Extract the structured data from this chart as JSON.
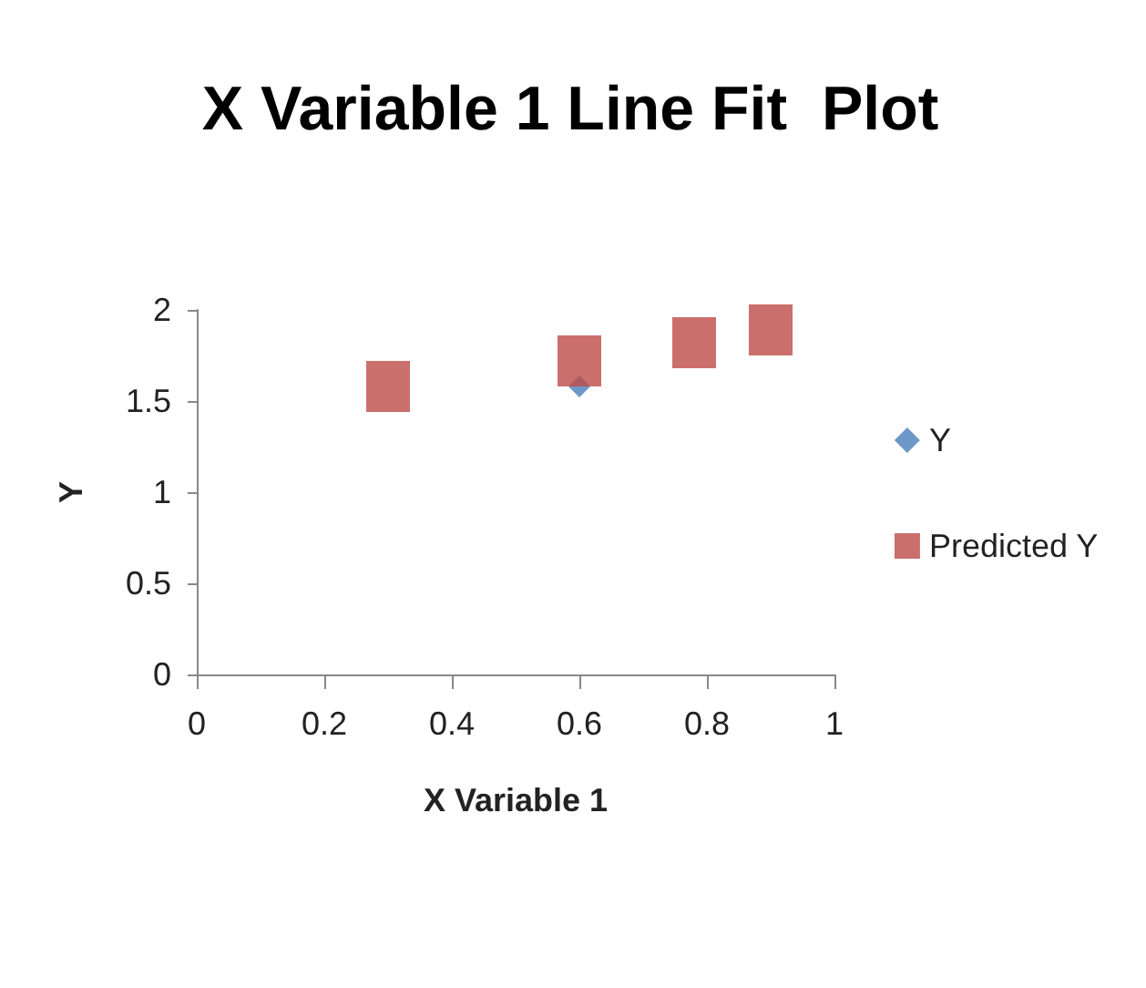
{
  "chart_data": {
    "type": "scatter",
    "title": "X Variable 1 Line Fit  Plot",
    "xlabel": "X Variable 1",
    "ylabel": "Y",
    "x": [
      0.3,
      0.6,
      0.78,
      0.9
    ],
    "series": [
      {
        "name": "Y",
        "color": "#4a7ebb",
        "marker": "diamond",
        "values": [
          null,
          1.58,
          null,
          null
        ]
      },
      {
        "name": "Predicted Y",
        "color": "#be4b48",
        "marker": "square",
        "values": [
          1.58,
          1.72,
          1.82,
          1.89
        ]
      }
    ],
    "xlim": [
      0,
      1
    ],
    "xticks": [
      0,
      0.2,
      0.4,
      0.6,
      0.8,
      1
    ],
    "ylim": [
      0,
      2
    ],
    "yticks": [
      0,
      0.5,
      1,
      1.5,
      2
    ],
    "grid": false,
    "legend": "right"
  }
}
